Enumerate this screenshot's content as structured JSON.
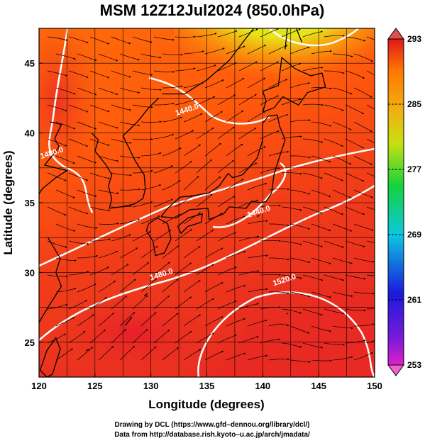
{
  "title": "MSM 12Z12Jul2024 (850.0hPa)",
  "x_axis": {
    "label": "Longitude (degrees)",
    "range": [
      120,
      150
    ],
    "ticks": [
      "120",
      "125",
      "130",
      "135",
      "140",
      "145",
      "150"
    ]
  },
  "y_axis": {
    "label": "Latitude  (degrees)",
    "range": [
      22.5,
      47.5
    ],
    "ticks": [
      "25",
      "30",
      "35",
      "40",
      "45"
    ]
  },
  "colorbar": {
    "range": [
      253,
      293
    ],
    "ticks": [
      "253",
      "261",
      "269",
      "277",
      "285",
      "293"
    ],
    "colors": [
      "#e020c8",
      "#1a1adc",
      "#0cc8e0",
      "#14d23c",
      "#f0e010",
      "#ff7a00",
      "#e01818"
    ]
  },
  "contours": [
    {
      "label": "1440.0",
      "lon": 133.3,
      "lat": 41.5
    },
    {
      "label": "1480.0",
      "lon": 121.2,
      "lat": 38.4
    },
    {
      "label": "1440.0",
      "lon": 139.7,
      "lat": 34.2
    },
    {
      "label": "1480.0",
      "lon": 131.0,
      "lat": 29.7
    },
    {
      "label": "1520.0",
      "lon": 142.0,
      "lat": 29.3
    }
  ],
  "credits": [
    "Drawing by DCL (https://www.gfd–dennou.org/library/dcl/)",
    "Data from http://database.rish.kyoto–u.ac.jp/arch/jmadata/"
  ]
}
